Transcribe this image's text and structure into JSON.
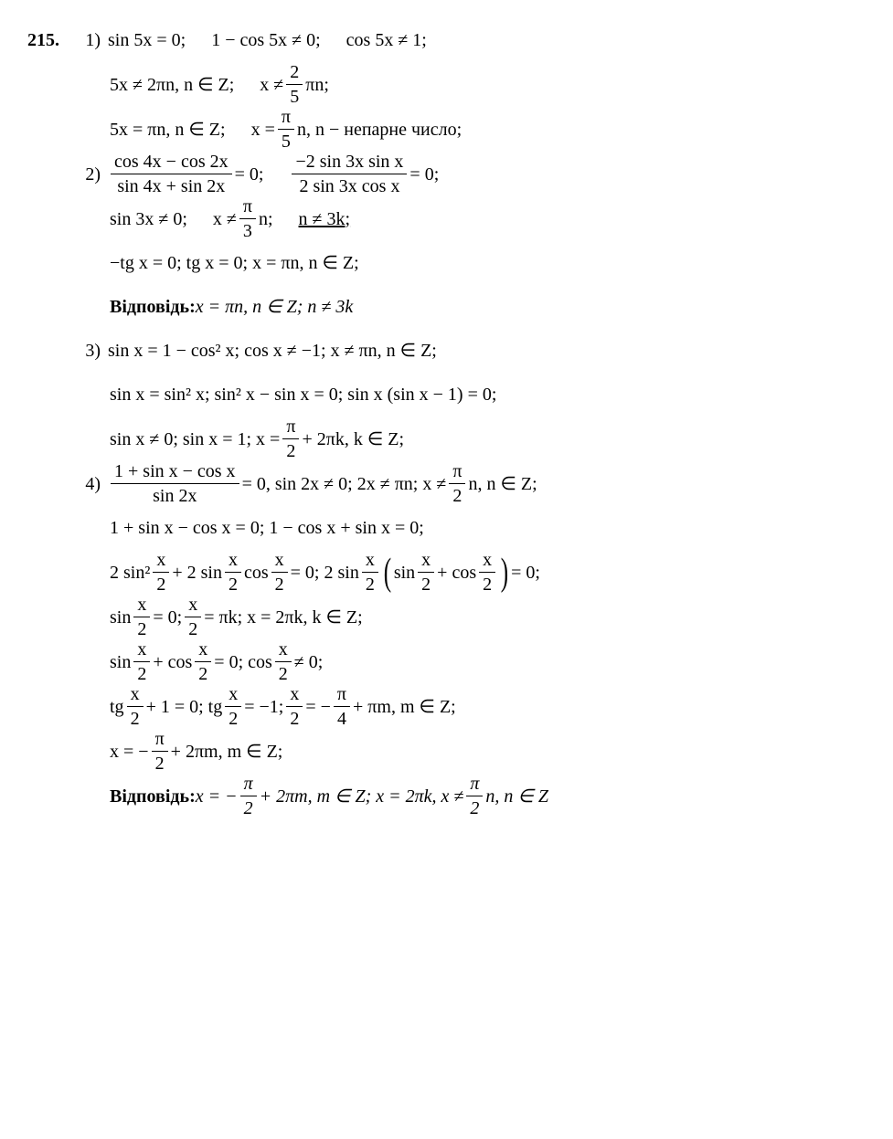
{
  "problem": "215.",
  "p1": {
    "num": "1)",
    "l1a": "sin 5x = 0;",
    "l1b": "1 − cos 5x ≠ 0;",
    "l1c": "cos 5x ≠ 1;",
    "l2a": "5x ≠ 2πn,  n ∈ Z;",
    "l2b": "x ≠ ",
    "l2b_num": "2",
    "l2b_den": "5",
    "l2c": "πn;",
    "l3a": "5x = πn,  n ∈ Z;",
    "l3b": "x = ",
    "l3b_num": "π",
    "l3b_den": "5",
    "l3c": "n,   n  −  непарне число;"
  },
  "p2": {
    "num": "2)",
    "l1_num": "cos 4x − cos 2x",
    "l1_den": "sin 4x + sin 2x",
    "l1_eq": " = 0;",
    "l1b_num": "−2 sin 3x sin x",
    "l1b_den": "2 sin 3x cos x",
    "l1b_eq": " = 0;",
    "l2a": "sin 3x ≠ 0;",
    "l2b": "x ≠ ",
    "l2b_num": "π",
    "l2b_den": "3",
    "l2c": "n;",
    "l2d": "n ≠ 3k;",
    "l3": "−tg x = 0;    tg x = 0;    x = πn,   n ∈ Z;",
    "ans_label": "Відповідь:",
    "ans": "  x = πn,   n ∈ Z;    n ≠ 3k"
  },
  "p3": {
    "num": "3)",
    "l1": "sin x = 1 − cos² x;    cos x ≠ −1;    x ≠ πn,   n ∈ Z;",
    "l2": "sin x = sin² x;    sin² x − sin x = 0;    sin x (sin x − 1) = 0;",
    "l3a": "sin x ≠ 0;    sin x = 1;    x = ",
    "l3_num": "π",
    "l3_den": "2",
    "l3b": " + 2πk,   k ∈ Z;"
  },
  "p4": {
    "num": "4)",
    "l1_num": "1 + sin x − cos x",
    "l1_den": "sin 2x",
    "l1_eq": " = 0,   sin 2x ≠ 0;   2x ≠ πn;   x ≠ ",
    "l1b_num": "π",
    "l1b_den": "2",
    "l1c": "n,  n ∈ Z;",
    "l2": "1 + sin x − cos x = 0;    1 − cos x + sin x = 0;",
    "l3a": "2 sin²",
    "l3_xh": "x",
    "l3_2": "2",
    "l3b": " + 2 sin",
    "l3c": " cos",
    "l3d": " = 0;    2 sin",
    "l3e": "sin",
    "l3f": " + cos",
    "l3g": " = 0;",
    "l4a": "sin",
    "l4b": " = 0;   ",
    "l4c": " = πk;    x = 2πk,   k ∈ Z;",
    "l5a": "sin",
    "l5b": " + cos",
    "l5c": " = 0;    cos",
    "l5d": " ≠ 0;",
    "l6a": "tg",
    "l6b": " + 1 = 0;    tg",
    "l6c": " = −1;   ",
    "l6d": " = −",
    "l6_pi4n": "π",
    "l6_pi4d": "4",
    "l6e": " + πm,   m ∈ Z;",
    "l7a": "x = −",
    "l7_num": "π",
    "l7_den": "2",
    "l7b": " + 2πm,   m ∈ Z;",
    "ans_label": "Відповідь:",
    "ans_a": "  x = −",
    "ans_num1": "π",
    "ans_den1": "2",
    "ans_b": " + 2πm,  m ∈ Z;   x = 2πk,   x ≠ ",
    "ans_num2": "π",
    "ans_den2": "2",
    "ans_c": "n,  n ∈ Z"
  }
}
